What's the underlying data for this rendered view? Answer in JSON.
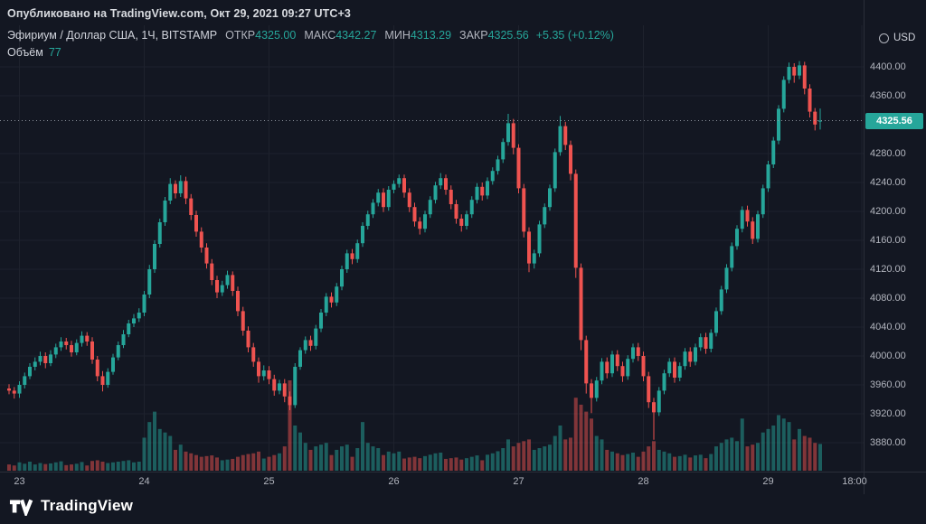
{
  "page": {
    "publish_line": "Опубликовано на TradingView.com, Окт 29, 2021 09:27 UTC+3",
    "currency_label": "USD",
    "footer_brand": "TradingView"
  },
  "legend": {
    "symbol_title": "Эфириум / Доллар США, 1Ч, BITSTAMP",
    "ohlc": [
      {
        "label": "ОТКР",
        "value": "4325.00"
      },
      {
        "label": "МАКС",
        "value": "4342.27"
      },
      {
        "label": "МИН",
        "value": "4313.29"
      },
      {
        "label": "ЗАКР",
        "value": "4325.56"
      }
    ],
    "change": "+5.35 (+0.12%)",
    "volume_label": "Объём",
    "volume_value": "77"
  },
  "colors": {
    "background": "#131722",
    "up": "#26a69a",
    "down": "#ef5350",
    "badge": "#26a69a",
    "grid": "#1e222d",
    "axis_text": "#b2b5be"
  },
  "chart_data": {
    "type": "candlestick",
    "title": "Эфириум / Доллар США, 1Ч, BITSTAMP",
    "symbol": "ETH/USD",
    "exchange": "BITSTAMP",
    "interval": "1Ч",
    "open": 4325.0,
    "high": 4342.27,
    "low": 4313.29,
    "close": 4325.56,
    "change_text": "+5.35 (+0.12%)",
    "volume": 77,
    "last_price": 4325.56,
    "last_price_label": "4325.56",
    "ylim": [
      3842,
      4430
    ],
    "price_ticks": [
      4400,
      4360,
      4280,
      4240,
      4200,
      4160,
      4120,
      4080,
      4040,
      4000,
      3960,
      3920,
      3880
    ],
    "x_ticks": [
      {
        "label": "23",
        "index": 2
      },
      {
        "label": "24",
        "index": 26
      },
      {
        "label": "25",
        "index": 50
      },
      {
        "label": "26",
        "index": 74
      },
      {
        "label": "27",
        "index": 98
      },
      {
        "label": "28",
        "index": 122
      },
      {
        "label": "29",
        "index": 146
      },
      {
        "label": "18:00",
        "index": 164
      }
    ],
    "candles_format": [
      "open",
      "high",
      "low",
      "close",
      "volume"
    ],
    "candles": [
      [
        3955,
        3961,
        3947,
        3952,
        18
      ],
      [
        3952,
        3957,
        3941,
        3948,
        15
      ],
      [
        3948,
        3965,
        3942,
        3960,
        24
      ],
      [
        3960,
        3977,
        3955,
        3972,
        20
      ],
      [
        3972,
        3990,
        3968,
        3985,
        26
      ],
      [
        3985,
        3998,
        3980,
        3992,
        18
      ],
      [
        3992,
        4006,
        3987,
        4000,
        22
      ],
      [
        4000,
        4005,
        3983,
        3990,
        19
      ],
      [
        3990,
        4008,
        3986,
        4002,
        21
      ],
      [
        4002,
        4017,
        3997,
        4012,
        24
      ],
      [
        4012,
        4026,
        4007,
        4020,
        27
      ],
      [
        4020,
        4025,
        4009,
        4015,
        16
      ],
      [
        4015,
        4021,
        3999,
        4005,
        18
      ],
      [
        4005,
        4023,
        4001,
        4018,
        20
      ],
      [
        4018,
        4034,
        4013,
        4028,
        25
      ],
      [
        4028,
        4033,
        4014,
        4020,
        15
      ],
      [
        4020,
        4026,
        3989,
        3995,
        28
      ],
      [
        3995,
        4000,
        3965,
        3972,
        30
      ],
      [
        3972,
        3979,
        3951,
        3960,
        26
      ],
      [
        3960,
        3983,
        3956,
        3978,
        22
      ],
      [
        3978,
        4003,
        3974,
        3998,
        24
      ],
      [
        3998,
        4020,
        3994,
        4015,
        26
      ],
      [
        4015,
        4036,
        4011,
        4030,
        28
      ],
      [
        4030,
        4050,
        4026,
        4045,
        30
      ],
      [
        4045,
        4058,
        4040,
        4052,
        24
      ],
      [
        4052,
        4066,
        4047,
        4060,
        26
      ],
      [
        4060,
        4090,
        4055,
        4085,
        95
      ],
      [
        4085,
        4126,
        4080,
        4120,
        140
      ],
      [
        4120,
        4160,
        4115,
        4155,
        170
      ],
      [
        4155,
        4190,
        4150,
        4185,
        120
      ],
      [
        4185,
        4220,
        4180,
        4215,
        110
      ],
      [
        4215,
        4246,
        4210,
        4238,
        100
      ],
      [
        4238,
        4243,
        4218,
        4225,
        60
      ],
      [
        4225,
        4250,
        4220,
        4242,
        75
      ],
      [
        4242,
        4248,
        4210,
        4218,
        55
      ],
      [
        4218,
        4224,
        4188,
        4195,
        50
      ],
      [
        4195,
        4201,
        4165,
        4172,
        45
      ],
      [
        4172,
        4178,
        4143,
        4150,
        40
      ],
      [
        4150,
        4156,
        4121,
        4128,
        42
      ],
      [
        4128,
        4134,
        4098,
        4105,
        44
      ],
      [
        4105,
        4111,
        4080,
        4088,
        38
      ],
      [
        4088,
        4104,
        4083,
        4098,
        30
      ],
      [
        4098,
        4118,
        4093,
        4112,
        32
      ],
      [
        4112,
        4117,
        4083,
        4090,
        34
      ],
      [
        4090,
        4096,
        4055,
        4062,
        40
      ],
      [
        4062,
        4068,
        4028,
        4035,
        45
      ],
      [
        4035,
        4041,
        4005,
        4012,
        48
      ],
      [
        4012,
        4018,
        3985,
        3992,
        50
      ],
      [
        3992,
        3998,
        3963,
        3972,
        55
      ],
      [
        3972,
        3987,
        3966,
        3980,
        35
      ],
      [
        3980,
        3986,
        3961,
        3968,
        40
      ],
      [
        3968,
        3974,
        3945,
        3952,
        45
      ],
      [
        3952,
        3967,
        3947,
        3962,
        50
      ],
      [
        3962,
        3968,
        3936,
        3944,
        70
      ],
      [
        3944,
        3951,
        3925,
        3932,
        260
      ],
      [
        3932,
        3990,
        3928,
        3985,
        130
      ],
      [
        3985,
        4012,
        3981,
        4008,
        110
      ],
      [
        4008,
        4027,
        4003,
        4022,
        80
      ],
      [
        4022,
        4028,
        4007,
        4014,
        60
      ],
      [
        4014,
        4043,
        4009,
        4038,
        70
      ],
      [
        4038,
        4065,
        4033,
        4060,
        75
      ],
      [
        4060,
        4087,
        4055,
        4082,
        80
      ],
      [
        4082,
        4088,
        4067,
        4074,
        45
      ],
      [
        4074,
        4101,
        4069,
        4096,
        60
      ],
      [
        4096,
        4125,
        4091,
        4120,
        70
      ],
      [
        4120,
        4147,
        4115,
        4142,
        75
      ],
      [
        4142,
        4148,
        4127,
        4134,
        40
      ],
      [
        4134,
        4161,
        4129,
        4156,
        65
      ],
      [
        4156,
        4185,
        4151,
        4180,
        140
      ],
      [
        4180,
        4201,
        4175,
        4196,
        80
      ],
      [
        4196,
        4217,
        4191,
        4212,
        70
      ],
      [
        4212,
        4231,
        4207,
        4226,
        65
      ],
      [
        4226,
        4232,
        4199,
        4206,
        45
      ],
      [
        4206,
        4235,
        4201,
        4230,
        55
      ],
      [
        4230,
        4243,
        4225,
        4238,
        50
      ],
      [
        4238,
        4251,
        4233,
        4246,
        55
      ],
      [
        4246,
        4251,
        4219,
        4226,
        35
      ],
      [
        4226,
        4232,
        4199,
        4206,
        38
      ],
      [
        4206,
        4212,
        4179,
        4186,
        40
      ],
      [
        4186,
        4192,
        4168,
        4176,
        36
      ],
      [
        4176,
        4201,
        4171,
        4196,
        42
      ],
      [
        4196,
        4221,
        4191,
        4216,
        46
      ],
      [
        4216,
        4241,
        4211,
        4236,
        50
      ],
      [
        4236,
        4253,
        4231,
        4246,
        52
      ],
      [
        4246,
        4251,
        4223,
        4230,
        34
      ],
      [
        4230,
        4236,
        4203,
        4210,
        36
      ],
      [
        4210,
        4216,
        4183,
        4190,
        38
      ],
      [
        4190,
        4196,
        4172,
        4180,
        32
      ],
      [
        4180,
        4201,
        4175,
        4196,
        36
      ],
      [
        4196,
        4221,
        4191,
        4216,
        40
      ],
      [
        4216,
        4239,
        4211,
        4234,
        44
      ],
      [
        4234,
        4240,
        4215,
        4222,
        30
      ],
      [
        4222,
        4247,
        4217,
        4242,
        46
      ],
      [
        4242,
        4261,
        4237,
        4256,
        50
      ],
      [
        4256,
        4277,
        4251,
        4272,
        56
      ],
      [
        4272,
        4301,
        4267,
        4296,
        65
      ],
      [
        4296,
        4335,
        4291,
        4322,
        90
      ],
      [
        4322,
        4328,
        4279,
        4288,
        70
      ],
      [
        4288,
        4293,
        4225,
        4232,
        80
      ],
      [
        4232,
        4238,
        4164,
        4172,
        85
      ],
      [
        4172,
        4178,
        4116,
        4128,
        90
      ],
      [
        4128,
        4147,
        4121,
        4142,
        60
      ],
      [
        4142,
        4187,
        4137,
        4182,
        65
      ],
      [
        4182,
        4211,
        4177,
        4206,
        70
      ],
      [
        4206,
        4237,
        4201,
        4232,
        75
      ],
      [
        4232,
        4287,
        4227,
        4282,
        100
      ],
      [
        4282,
        4332,
        4277,
        4318,
        130
      ],
      [
        4318,
        4324,
        4285,
        4292,
        90
      ],
      [
        4292,
        4298,
        4243,
        4252,
        95
      ],
      [
        4252,
        4258,
        4108,
        4122,
        210
      ],
      [
        4122,
        4128,
        4008,
        4022,
        190
      ],
      [
        4022,
        4028,
        3948,
        3962,
        170
      ],
      [
        3962,
        3968,
        3921,
        3942,
        150
      ],
      [
        3942,
        3971,
        3937,
        3966,
        100
      ],
      [
        3966,
        3997,
        3961,
        3992,
        90
      ],
      [
        3992,
        3998,
        3969,
        3976,
        60
      ],
      [
        3976,
        4007,
        3971,
        4002,
        55
      ],
      [
        4002,
        4008,
        3979,
        3986,
        50
      ],
      [
        3986,
        3992,
        3964,
        3972,
        45
      ],
      [
        3972,
        4001,
        3967,
        3996,
        48
      ],
      [
        3996,
        4017,
        3991,
        4012,
        52
      ],
      [
        4012,
        4018,
        3993,
        4000,
        40
      ],
      [
        4000,
        4006,
        3965,
        3972,
        55
      ],
      [
        3972,
        3978,
        3928,
        3936,
        70
      ],
      [
        3936,
        3942,
        3884,
        3922,
        85
      ],
      [
        3922,
        3957,
        3917,
        3952,
        60
      ],
      [
        3952,
        3981,
        3947,
        3976,
        55
      ],
      [
        3976,
        3997,
        3971,
        3992,
        50
      ],
      [
        3992,
        3998,
        3963,
        3970,
        40
      ],
      [
        3970,
        3991,
        3965,
        3986,
        42
      ],
      [
        3986,
        4011,
        3981,
        4006,
        46
      ],
      [
        4006,
        4012,
        3985,
        3992,
        38
      ],
      [
        3992,
        4017,
        3987,
        4012,
        44
      ],
      [
        4012,
        4031,
        4007,
        4026,
        46
      ],
      [
        4026,
        4032,
        4003,
        4010,
        36
      ],
      [
        4010,
        4037,
        4005,
        4032,
        48
      ],
      [
        4032,
        4067,
        4027,
        4062,
        70
      ],
      [
        4062,
        4097,
        4057,
        4092,
        80
      ],
      [
        4092,
        4127,
        4087,
        4122,
        90
      ],
      [
        4122,
        4157,
        4117,
        4152,
        95
      ],
      [
        4152,
        4181,
        4147,
        4176,
        85
      ],
      [
        4176,
        4207,
        4171,
        4202,
        150
      ],
      [
        4202,
        4208,
        4179,
        4186,
        70
      ],
      [
        4186,
        4192,
        4155,
        4162,
        75
      ],
      [
        4162,
        4201,
        4157,
        4196,
        80
      ],
      [
        4196,
        4237,
        4191,
        4232,
        110
      ],
      [
        4232,
        4270,
        4227,
        4265,
        120
      ],
      [
        4265,
        4303,
        4260,
        4298,
        130
      ],
      [
        4298,
        4347,
        4293,
        4342,
        160
      ],
      [
        4342,
        4387,
        4337,
        4382,
        150
      ],
      [
        4382,
        4406,
        4377,
        4400,
        140
      ],
      [
        4400,
        4405,
        4378,
        4388,
        90
      ],
      [
        4388,
        4408,
        4383,
        4402,
        120
      ],
      [
        4402,
        4407,
        4362,
        4370,
        100
      ],
      [
        4370,
        4376,
        4330,
        4338,
        95
      ],
      [
        4338,
        4343,
        4312,
        4320.21,
        80
      ],
      [
        4325.0,
        4342.27,
        4313.29,
        4325.56,
        77
      ]
    ]
  }
}
